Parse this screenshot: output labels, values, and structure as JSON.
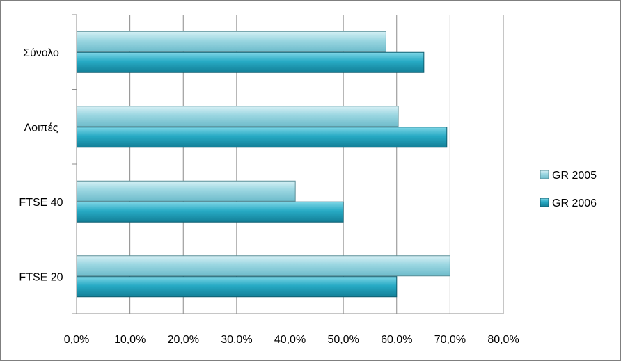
{
  "chart_data": {
    "type": "bar",
    "orientation": "horizontal",
    "categories": [
      "FTSE 20",
      "FTSE 40",
      "Λοιπές",
      "Σύνολο"
    ],
    "series": [
      {
        "name": "GR 2005",
        "values": [
          70.0,
          41.0,
          60.3,
          58.0
        ],
        "color": "#8fd3df"
      },
      {
        "name": "GR 2006",
        "values": [
          60.0,
          50.0,
          69.4,
          65.1
        ],
        "color": "#22a9c2"
      }
    ],
    "x_ticks": [
      "0,0%",
      "10,0%",
      "20,0%",
      "30,0%",
      "40,0%",
      "50,0%",
      "60,0%",
      "70,0%",
      "80,0%"
    ],
    "xlim": [
      0,
      80
    ],
    "grid": true,
    "legend_position": "right",
    "title": "",
    "xlabel": "",
    "ylabel": ""
  }
}
